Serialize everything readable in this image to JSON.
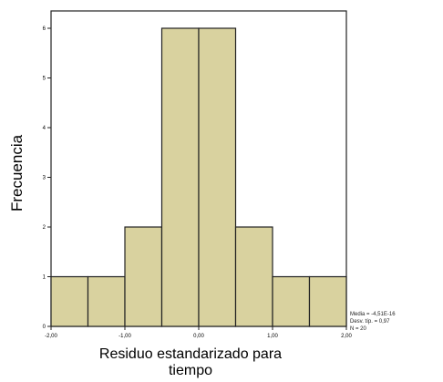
{
  "chart_data": {
    "type": "bar",
    "subtype": "histogram",
    "ylabel": "Frecuencia",
    "xlabel": "Residuo estandarizado para tiempo",
    "xlabel_lines": [
      "Residuo estandarizado para",
      "tiempo"
    ],
    "bin_edges": [
      -2.0,
      -1.5,
      -1.0,
      -0.5,
      0.0,
      0.5,
      1.0,
      1.5,
      2.0
    ],
    "values": [
      1,
      1,
      2,
      6,
      6,
      2,
      1,
      1
    ],
    "xlim": [
      -2.0,
      2.0
    ],
    "ylim": [
      0,
      6.5
    ],
    "x_tick_values": [
      -2.0,
      -1.0,
      0.0,
      1.0,
      2.0
    ],
    "x_tick_labels": [
      "-2,00",
      "-1,00",
      "0,00",
      "1,00",
      "2,00"
    ],
    "y_tick_values": [
      0,
      1,
      2,
      3,
      4,
      5,
      6
    ],
    "y_tick_labels": [
      "0",
      "1",
      "2",
      "3",
      "4",
      "5",
      "6"
    ],
    "stats": [
      "Media = -4,51E-16",
      "Desv. típ. = 0,97",
      "N = 20"
    ],
    "colors": {
      "bar_fill": "#d9d29f",
      "bar_stroke": "#222222",
      "plot_bg": "#ffffff"
    },
    "grid": false
  }
}
